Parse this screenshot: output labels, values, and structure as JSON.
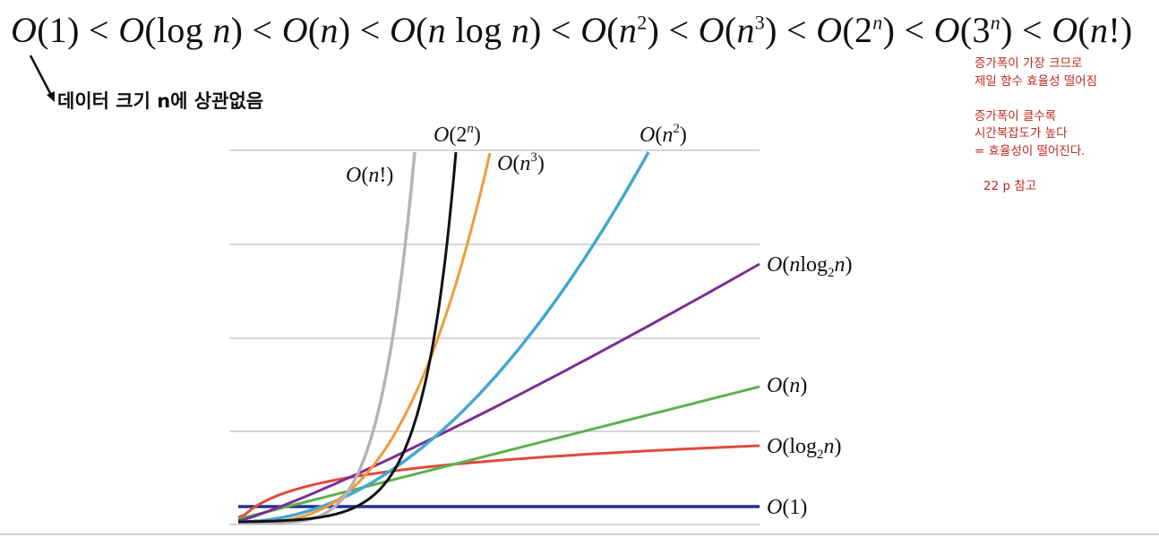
{
  "ordering": {
    "text": "O(1) < O(log n) < O(n) < O(n log n) < O(n²) < O(n³) < O(2ⁿ) < O(3ⁿ) < O(n!)"
  },
  "notes": {
    "left": "데이터 크기 n에 상관없음",
    "right_lines": [
      "증가폭이 가장 크므로",
      "제일 함수 효율성 떨어짐"
    ],
    "right_lines2": [
      "증가폭이 클수록",
      "시간복잡도가 높다",
      "= 효율성이 떨어진다."
    ],
    "reference": "22 p 참고"
  },
  "colors": {
    "O(1)": "#27318f",
    "O(log2n)": "#e04a3c",
    "O(n)": "#5cb150",
    "O(nlog2n)": "#7b2f94",
    "O(n^2)": "#45a7d1",
    "O(n^3)": "#f19a3b",
    "O(2^n)": "#111111",
    "O(n!)": "#b4b4b4",
    "grid": "#c8c8c8",
    "note": "#c0281e"
  },
  "chart_data": {
    "type": "line",
    "title": "",
    "xlabel": "",
    "ylabel": "",
    "grid": "horizontal",
    "series": [
      {
        "name": "O(1)",
        "key": "c1"
      },
      {
        "name": "O(log2n)",
        "key": "log"
      },
      {
        "name": "O(n)",
        "key": "n"
      },
      {
        "name": "O(nlog2n)",
        "key": "nlog"
      },
      {
        "name": "O(n^2)",
        "key": "n2"
      },
      {
        "name": "O(n^3)",
        "key": "n3"
      },
      {
        "name": "O(2^n)",
        "key": "exp"
      },
      {
        "name": "O(n!)",
        "key": "fact"
      }
    ]
  }
}
